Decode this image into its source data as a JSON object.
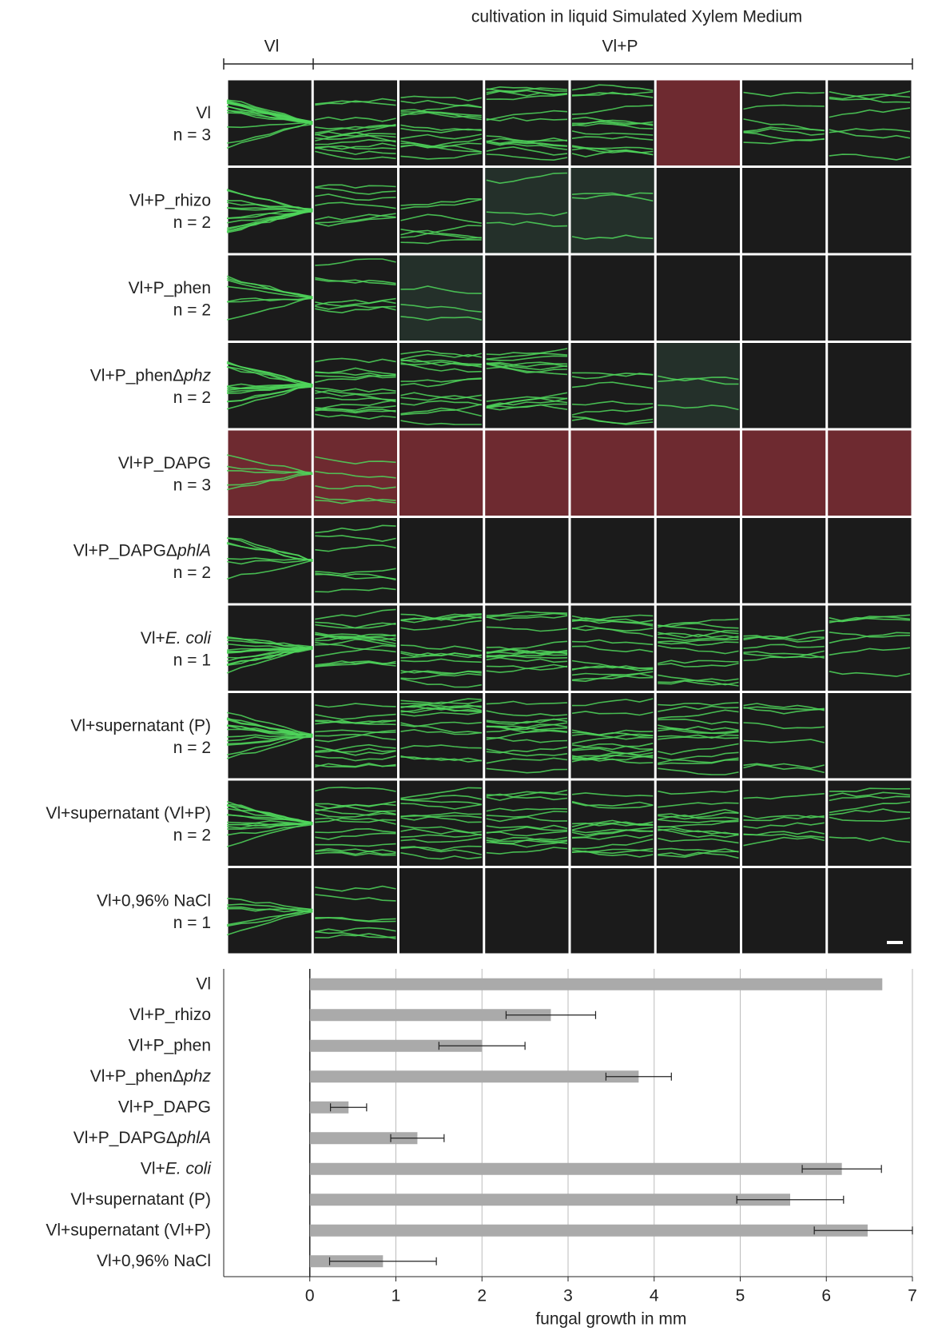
{
  "figure": {
    "title": "cultivation in liquid Simulated Xylem Medium",
    "groups": [
      "Vl",
      "Vl+P"
    ],
    "rows": [
      {
        "label": [
          {
            "text": "Vl"
          }
        ],
        "n": "n = 3"
      },
      {
        "label": [
          {
            "text": "Vl+P_rhizo"
          }
        ],
        "n": "n = 2"
      },
      {
        "label": [
          {
            "text": "Vl+P_phen"
          }
        ],
        "n": "n = 2"
      },
      {
        "label": [
          {
            "text": "Vl+P_phenΔ"
          },
          {
            "text": "phz",
            "italic": true
          }
        ],
        "n": "n = 2"
      },
      {
        "label": [
          {
            "text": "Vl+P_DAPG"
          }
        ],
        "n": "n = 3"
      },
      {
        "label": [
          {
            "text": "Vl+P_DAPGΔ"
          },
          {
            "text": "phlA",
            "italic": true
          }
        ],
        "n": "n = 2"
      },
      {
        "label": [
          {
            "text": "Vl+"
          },
          {
            "text": "E. coli",
            "italic": true
          }
        ],
        "n": "n = 1"
      },
      {
        "label": [
          {
            "text": "Vl+supernatant (P)"
          }
        ],
        "n": "n = 2"
      },
      {
        "label": [
          {
            "text": "Vl+supernatant (Vl+P)"
          }
        ],
        "n": "n = 2"
      },
      {
        "label": [
          {
            "text": "Vl+0,96% NaCl"
          }
        ],
        "n": "n = 1"
      }
    ]
  },
  "chart_data": {
    "type": "bar",
    "orientation": "horizontal",
    "categories": [
      [
        {
          "text": "Vl"
        }
      ],
      [
        {
          "text": "Vl+P_rhizo"
        }
      ],
      [
        {
          "text": "Vl+P_phen"
        }
      ],
      [
        {
          "text": "Vl+P_phenΔ"
        },
        {
          "text": "phz",
          "italic": true
        }
      ],
      [
        {
          "text": "Vl+P_DAPG"
        }
      ],
      [
        {
          "text": "Vl+P_DAPGΔ"
        },
        {
          "text": "phlA",
          "italic": true
        }
      ],
      [
        {
          "text": "Vl+"
        },
        {
          "text": "E. coli",
          "italic": true
        }
      ],
      [
        {
          "text": "Vl+supernatant (P)"
        }
      ],
      [
        {
          "text": "Vl+supernatant (Vl+P)"
        }
      ],
      [
        {
          "text": "Vl+0,96% NaCl"
        }
      ]
    ],
    "values": [
      6.65,
      2.8,
      2.0,
      3.82,
      0.45,
      1.25,
      6.18,
      5.58,
      6.48,
      0.85
    ],
    "errors": [
      null,
      0.52,
      0.5,
      0.38,
      0.21,
      0.31,
      0.46,
      0.62,
      0.62,
      0.62
    ],
    "color": "#aaaaaa",
    "xlim": [
      -1,
      7
    ],
    "xticks": [
      0,
      1,
      2,
      3,
      4,
      5,
      6,
      7
    ],
    "xlabel": "fungal growth in mm",
    "grid": true
  }
}
